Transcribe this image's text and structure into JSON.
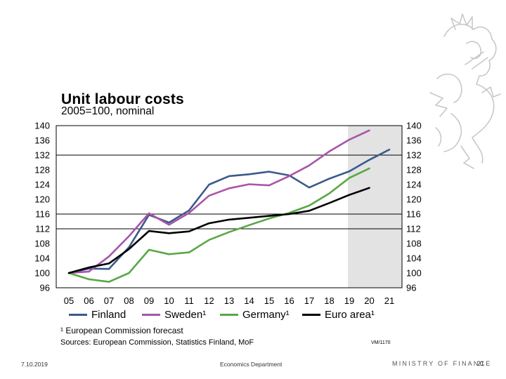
{
  "slide": {
    "title": "Unit labour costs",
    "subtitle": "2005=100, nominal",
    "footnote": "¹ European Commission forecast",
    "sources": "Sources: European Commission, Statistics Finland, MoF",
    "chart_code": "VM/1170",
    "date": "7.10.2019",
    "department": "Economics Department",
    "ministry": "MINISTRY OF FINANCE",
    "page_number": "21"
  },
  "colors": {
    "finland": "#3b5a8a",
    "sweden": "#a855a8",
    "germany": "#58a845",
    "euro_area": "#000000",
    "forecast_shade": "#e3e3e3"
  },
  "legend": [
    {
      "label": "Finland",
      "color": "#3b5a8a"
    },
    {
      "label": "Sweden¹",
      "color": "#a855a8"
    },
    {
      "label": "Germany¹",
      "color": "#58a845"
    },
    {
      "label": "Euro area¹",
      "color": "#000000"
    }
  ],
  "chart_data": {
    "type": "line",
    "title": "Unit labour costs",
    "subtitle": "2005=100, nominal",
    "x": [
      "05",
      "06",
      "07",
      "08",
      "09",
      "10",
      "11",
      "12",
      "13",
      "14",
      "15",
      "16",
      "17",
      "18",
      "19",
      "20",
      "21"
    ],
    "ylim": [
      96,
      140
    ],
    "yticks": [
      "96",
      "100",
      "104",
      "108",
      "112",
      "116",
      "120",
      "124",
      "128",
      "132",
      "136",
      "140"
    ],
    "forecast_shading": {
      "from": "19",
      "to": "21"
    },
    "reference_lines": [
      132,
      116,
      112
    ],
    "series": [
      {
        "name": "Finland",
        "values": [
          100,
          101.2,
          101.1,
          107,
          115.8,
          113.7,
          117,
          124,
          126.3,
          126.8,
          127.5,
          126.5,
          123.2,
          125.6,
          127.6,
          130.7,
          133.5
        ]
      },
      {
        "name": "Sweden¹",
        "values": [
          100,
          100.4,
          104.5,
          110,
          116.2,
          113.1,
          116.3,
          121,
          123,
          124.1,
          123.8,
          126.3,
          129.2,
          133,
          136.2,
          138.7,
          null
        ]
      },
      {
        "name": "Germany¹",
        "values": [
          100,
          98.3,
          97.6,
          100,
          106.3,
          105.1,
          105.6,
          109,
          111.1,
          113,
          114.8,
          116.3,
          118.3,
          121.6,
          125.8,
          128.4,
          null
        ]
      },
      {
        "name": "Euro area¹",
        "values": [
          100,
          101.5,
          102.6,
          106.5,
          111.4,
          110.8,
          111.3,
          113.5,
          114.5,
          115,
          115.5,
          116,
          116.9,
          119,
          121.2,
          123.1,
          null
        ]
      }
    ]
  }
}
